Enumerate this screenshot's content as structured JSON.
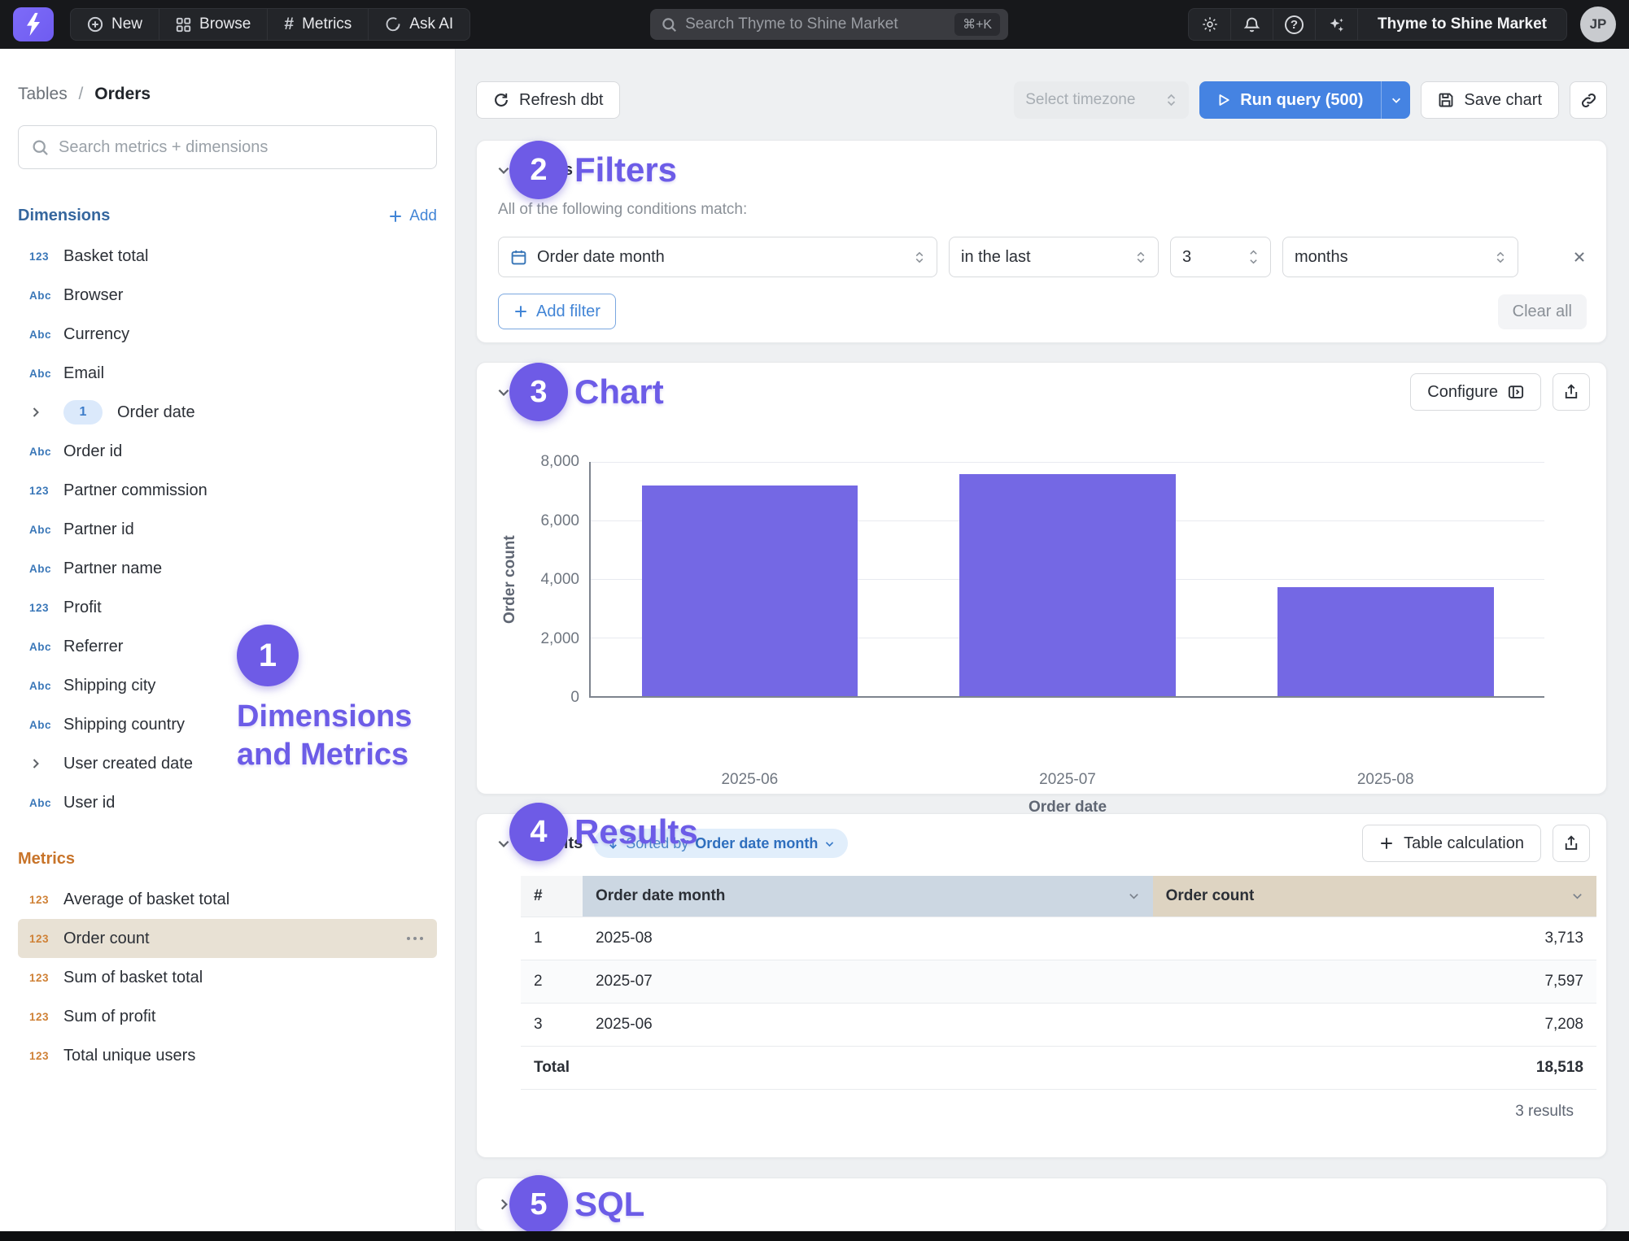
{
  "nav": {
    "items": [
      {
        "label": "New"
      },
      {
        "label": "Browse"
      },
      {
        "label": "Metrics"
      },
      {
        "label": "Ask AI"
      }
    ],
    "search": {
      "placeholder": "Search Thyme to Shine Market",
      "shortcut": "⌘+K"
    },
    "org_name": "Thyme to Shine Market",
    "avatar_initials": "JP",
    "help_glyph": "?"
  },
  "sidebar": {
    "breadcrumb": {
      "root": "Tables",
      "separator": "/",
      "current": "Orders"
    },
    "search_placeholder": "Search metrics + dimensions",
    "icon_text": {
      "number": "123",
      "string": "Abc"
    },
    "dimensions": {
      "title": "Dimensions",
      "add_label": "Add",
      "items": [
        {
          "type": "number",
          "label": "Basket total"
        },
        {
          "type": "string",
          "label": "Browser"
        },
        {
          "type": "string",
          "label": "Currency"
        },
        {
          "type": "string",
          "label": "Email"
        },
        {
          "type": "group",
          "label": "Order date",
          "badge": "1"
        },
        {
          "type": "string",
          "label": "Order id"
        },
        {
          "type": "number",
          "label": "Partner commission"
        },
        {
          "type": "string",
          "label": "Partner id"
        },
        {
          "type": "string",
          "label": "Partner name"
        },
        {
          "type": "number",
          "label": "Profit"
        },
        {
          "type": "string",
          "label": "Referrer"
        },
        {
          "type": "string",
          "label": "Shipping city"
        },
        {
          "type": "string",
          "label": "Shipping country"
        },
        {
          "type": "group",
          "label": "User created date"
        },
        {
          "type": "string",
          "label": "User id"
        }
      ]
    },
    "metrics": {
      "title": "Metrics",
      "items": [
        {
          "label": "Average of basket total"
        },
        {
          "label": "Order count",
          "selected": true
        },
        {
          "label": "Sum of basket total"
        },
        {
          "label": "Sum of profit"
        },
        {
          "label": "Total unique users"
        }
      ]
    }
  },
  "toolbar": {
    "refresh_label": "Refresh dbt",
    "timezone_placeholder": "Select timezone",
    "run_query_label": "Run query (500)",
    "save_chart_label": "Save chart"
  },
  "filters": {
    "title": "Filters",
    "condition_text": "All of the following conditions match:",
    "rule": {
      "field": "Order date month",
      "operator": "in the last",
      "value": "3",
      "unit": "months"
    },
    "add_filter_label": "Add filter",
    "clear_all_label": "Clear all"
  },
  "chart_section": {
    "title": "Chart",
    "configure_label": "Configure"
  },
  "chart_data": {
    "type": "bar",
    "categories": [
      "2025-06",
      "2025-07",
      "2025-08"
    ],
    "values": [
      7208,
      7597,
      3713
    ],
    "title": "",
    "xlabel": "Order date",
    "ylabel": "Order count",
    "ylim": [
      0,
      8000
    ],
    "y_ticks": [
      "0",
      "2,000",
      "4,000",
      "6,000",
      "8,000"
    ],
    "bar_color": "#7468e4",
    "grid": true,
    "legend": false
  },
  "results": {
    "title": "Results",
    "sorted_by_prefix": "Sorted by",
    "sorted_by_field": "Order date month",
    "table_calculation_label": "Table calculation",
    "table": {
      "index_header": "#",
      "columns": [
        "Order date month",
        "Order count"
      ],
      "rows": [
        {
          "index": "1",
          "dim": "2025-08",
          "value": "3,713"
        },
        {
          "index": "2",
          "dim": "2025-07",
          "value": "7,597"
        },
        {
          "index": "3",
          "dim": "2025-06",
          "value": "7,208"
        }
      ],
      "total_label": "Total",
      "total_value": "18,518"
    },
    "results_count": "3 results"
  },
  "sql_section": {
    "title": "SQL"
  },
  "annotations": {
    "color": "#6e5be6",
    "items": [
      {
        "number": "1",
        "label": "Dimensions and Metrics"
      },
      {
        "number": "2",
        "label": "Filters"
      },
      {
        "number": "3",
        "label": "Chart"
      },
      {
        "number": "4",
        "label": "Results"
      },
      {
        "number": "5",
        "label": "SQL"
      }
    ]
  }
}
